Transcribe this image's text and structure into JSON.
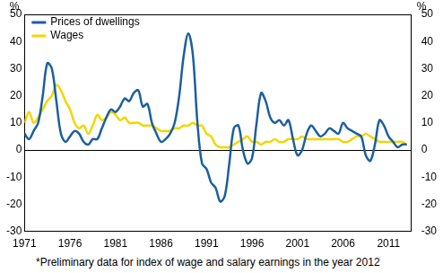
{
  "chart_data": {
    "type": "line",
    "y_label": "%",
    "y2_label": "%",
    "note": "*Preliminary data for index of wage and salary earnings in the year 2012",
    "x": [
      1971.0,
      1971.5,
      1972.0,
      1972.5,
      1973.0,
      1973.5,
      1974.0,
      1974.5,
      1975.0,
      1975.5,
      1976.0,
      1976.5,
      1977.0,
      1977.5,
      1978.0,
      1978.5,
      1979.0,
      1979.5,
      1980.0,
      1980.5,
      1981.0,
      1981.5,
      1982.0,
      1982.5,
      1983.0,
      1983.5,
      1984.0,
      1984.5,
      1985.0,
      1985.5,
      1986.0,
      1986.5,
      1987.0,
      1987.5,
      1988.0,
      1988.5,
      1989.0,
      1989.5,
      1990.0,
      1990.5,
      1991.0,
      1991.5,
      1992.0,
      1992.5,
      1993.0,
      1993.5,
      1994.0,
      1994.5,
      1995.0,
      1995.5,
      1996.0,
      1996.5,
      1997.0,
      1997.5,
      1998.0,
      1998.5,
      1999.0,
      1999.5,
      2000.0,
      2000.5,
      2001.0,
      2001.5,
      2002.0,
      2002.5,
      2003.0,
      2003.5,
      2004.0,
      2004.5,
      2005.0,
      2005.5,
      2006.0,
      2006.5,
      2007.0,
      2007.5,
      2008.0,
      2008.5,
      2009.0,
      2009.5,
      2010.0,
      2010.5,
      2011.0,
      2011.5,
      2012.0,
      2012.5,
      2013.0
    ],
    "series": [
      {
        "name": "Prices of dwellings",
        "color": "#1c5f9e",
        "values": [
          6,
          4,
          7,
          10,
          20,
          32,
          30,
          18,
          6,
          3,
          5,
          7,
          6,
          3,
          2,
          4,
          4,
          8,
          12,
          15,
          14,
          16,
          19,
          18,
          21,
          22,
          16,
          17,
          10,
          6,
          3,
          4,
          6,
          10,
          20,
          35,
          43,
          35,
          10,
          -5,
          -7,
          -12,
          -14,
          -19,
          -17,
          -5,
          8,
          9,
          0,
          -5,
          -3,
          10,
          21,
          18,
          12,
          10,
          11,
          9,
          11,
          4,
          -2,
          0,
          6,
          9,
          7,
          5,
          6,
          8,
          7,
          6,
          10,
          8,
          7,
          6,
          5,
          -2,
          -4,
          2,
          11,
          9,
          5,
          3,
          1,
          2,
          2
        ]
      },
      {
        "name": "Wages",
        "color": "#f2d600",
        "values": [
          10,
          14,
          10,
          12,
          15,
          18,
          20,
          24,
          22,
          18,
          15,
          10,
          8,
          9,
          6,
          9,
          13,
          11,
          12,
          14,
          13,
          11,
          12,
          10,
          10,
          10,
          9,
          9,
          9,
          8,
          7,
          7,
          7,
          8,
          8,
          9,
          9,
          10,
          9,
          9,
          6,
          5,
          2,
          1,
          1,
          1,
          2,
          3,
          4,
          5,
          3,
          3,
          2,
          3,
          3,
          4,
          3,
          3,
          4,
          4,
          4,
          5,
          4,
          4,
          4,
          4,
          4,
          4,
          4,
          4,
          3,
          3,
          4,
          5,
          5,
          6,
          5,
          4,
          3,
          3,
          3,
          3,
          3,
          3,
          2
        ]
      }
    ],
    "xlim": [
      1971,
      2013.5
    ],
    "xticks": [
      1971,
      1976,
      1981,
      1986,
      1991,
      1996,
      2001,
      2006,
      2011
    ],
    "ylim": [
      -30,
      50
    ],
    "yticks": [
      -30,
      -20,
      -10,
      0,
      10,
      20,
      30,
      40,
      50
    ],
    "y2lim": [
      -30,
      50
    ],
    "y2ticks": [
      -30,
      -20,
      -10,
      0,
      10,
      20,
      30,
      40,
      50
    ],
    "grid": false,
    "legend": "upper left"
  }
}
